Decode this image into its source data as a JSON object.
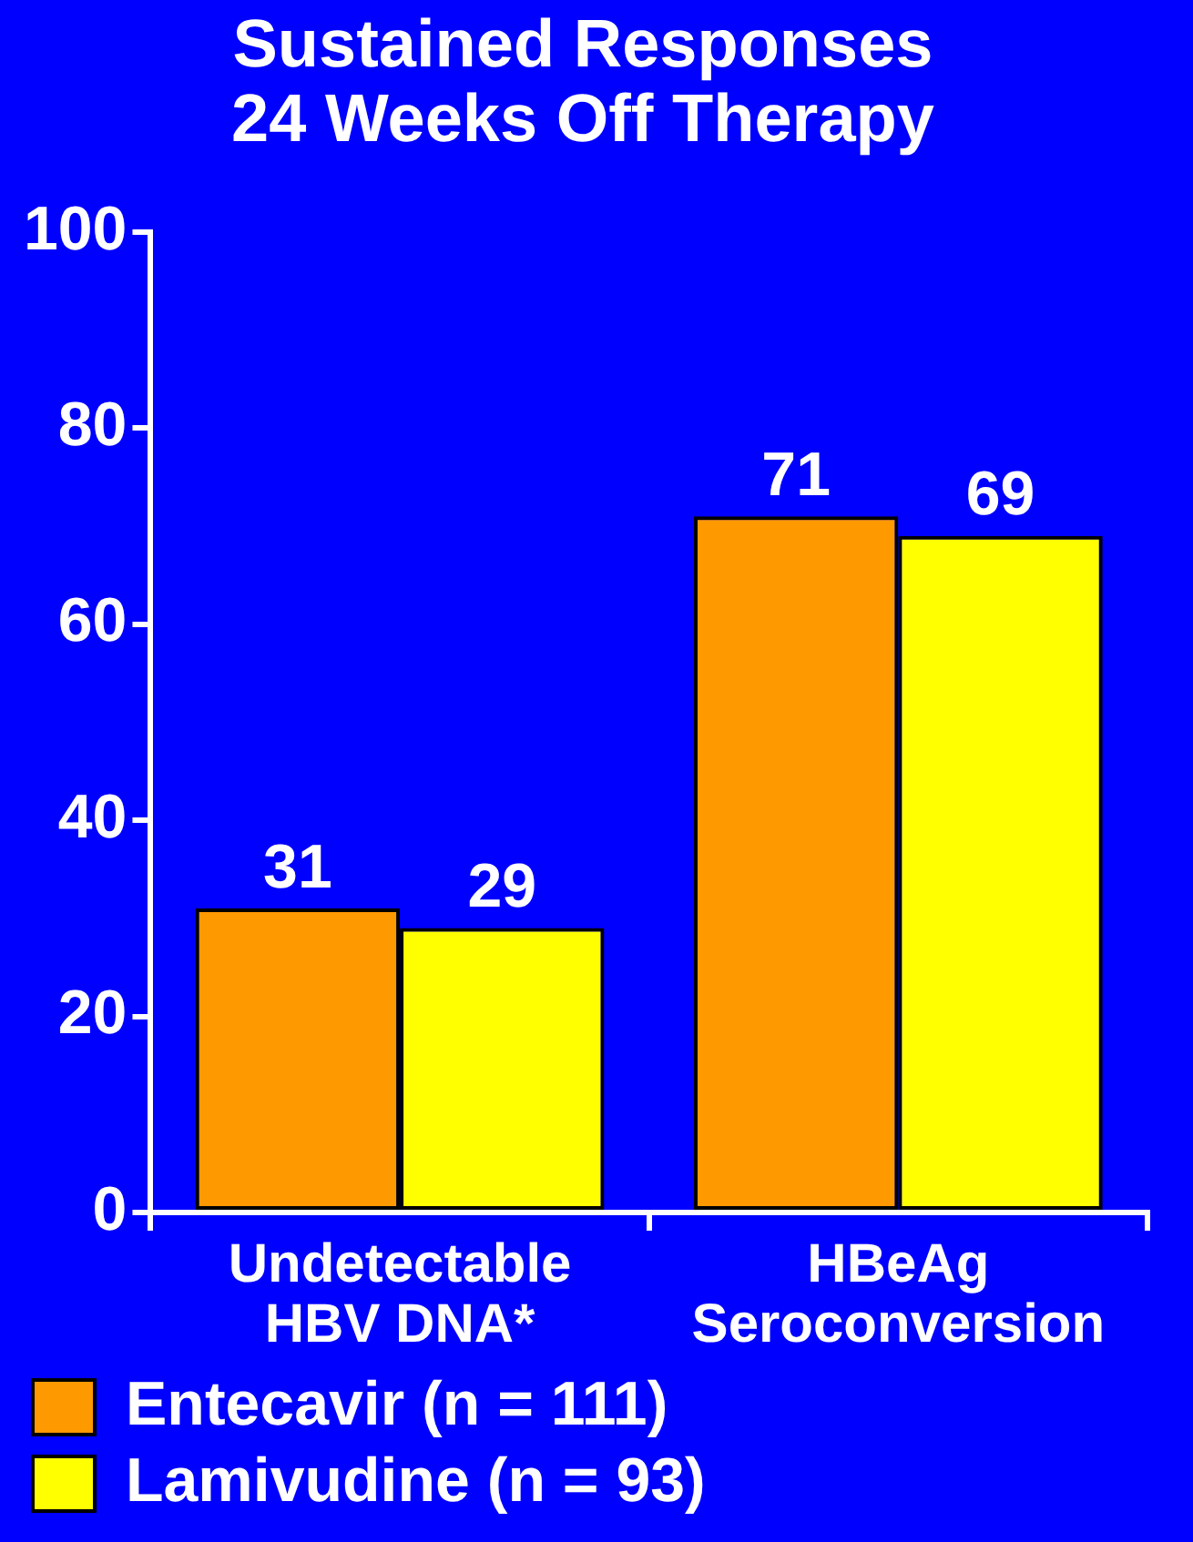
{
  "chart_data": {
    "type": "bar",
    "title": "Sustained Responses\n24 Weeks Off Therapy",
    "categories": [
      "Undetectable\nHBV DNA*",
      "HBeAg\nSeroconversion"
    ],
    "series": [
      {
        "name": "Entecavir (n = 111)",
        "color": "#ff9900",
        "values": [
          31,
          71
        ]
      },
      {
        "name": "Lamivudine (n = 93)",
        "color": "#ffff00",
        "values": [
          29,
          69
        ]
      }
    ],
    "ylim": [
      0,
      100
    ],
    "yticks": [
      0,
      20,
      40,
      60,
      80,
      100
    ],
    "grid": false,
    "legend": "bottom",
    "data_labels": true
  }
}
